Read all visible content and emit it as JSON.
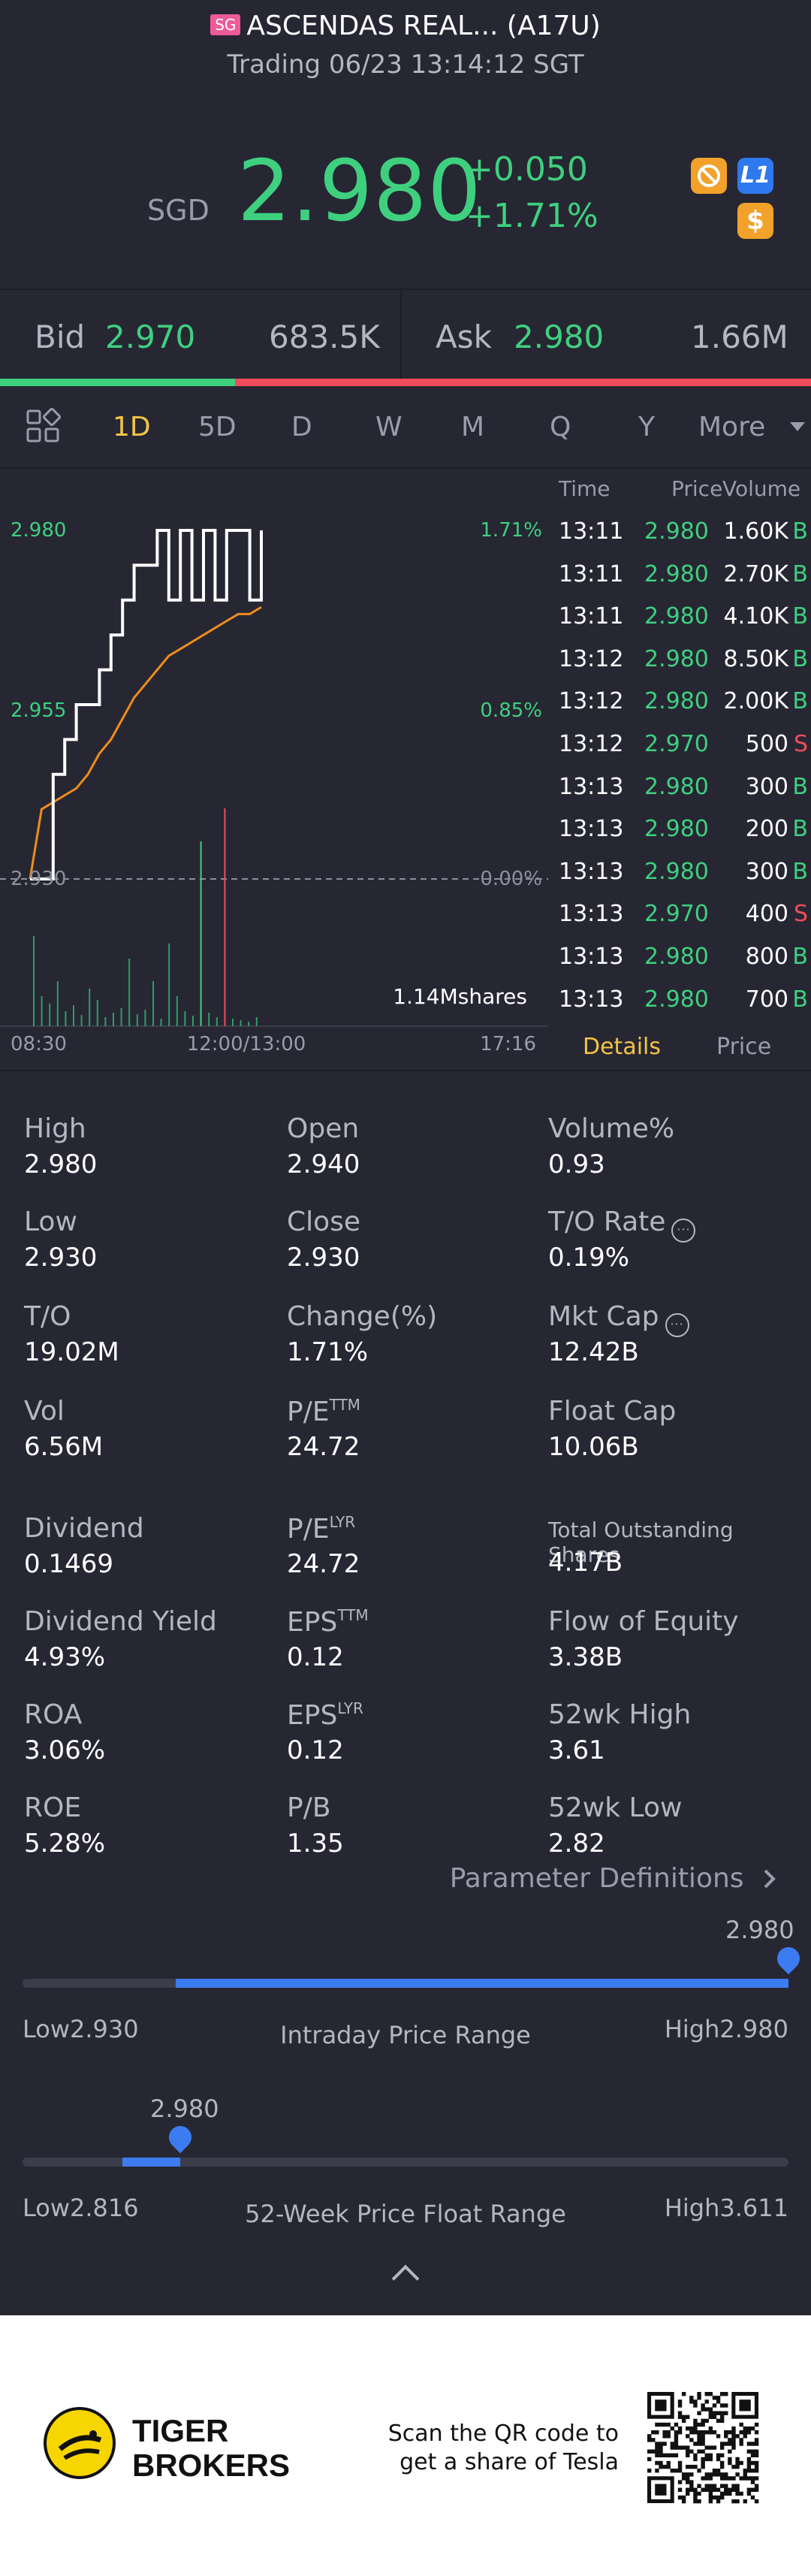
{
  "header": {
    "market_tag": "SG",
    "title": "ASCENDAS REAL... (A17U)",
    "subtitle": "Trading 06/23 13:14:12 SGT"
  },
  "quote": {
    "currency": "SGD",
    "price": "2.980",
    "change": "+0.050",
    "change_pct": "+1.71%",
    "icons": [
      "no-entry-icon",
      "level1-badge-icon",
      "dollar-icon"
    ],
    "l1_label": "L1",
    "dollar_label": "$"
  },
  "bid_ask": {
    "bid_label": "Bid",
    "bid_price": "2.970",
    "bid_volume": "683.5K",
    "ask_label": "Ask",
    "ask_price": "2.980",
    "ask_volume": "1.66M",
    "bid_ratio": 0.29
  },
  "timeframes": {
    "items": [
      "1D",
      "5D",
      "D",
      "W",
      "M",
      "Q",
      "Y"
    ],
    "active": "1D",
    "more_label": "More"
  },
  "chart": {
    "y_top_label": "2.980",
    "y_mid_label": "2.955",
    "y_bottom_label": "2.930",
    "pct_top": "1.71%",
    "pct_mid": "0.85%",
    "pct_bottom": "0.00%",
    "volume_label": "1.14Mshares",
    "x_start": "08:30",
    "x_mid": "12:00/13:00",
    "x_end": "17:16"
  },
  "chart_data": {
    "type": "line",
    "ylim": [
      2.93,
      2.98
    ],
    "xlabel": "",
    "ylabel": "",
    "series": [
      {
        "values": [
          2.93,
          2.93,
          2.945,
          2.95,
          2.955,
          2.955,
          2.96,
          2.965,
          2.97,
          2.975,
          2.975,
          2.98,
          2.97,
          2.98,
          2.97,
          2.98,
          2.97,
          2.98,
          2.98,
          2.97,
          2.98
        ]
      },
      {
        "values": [
          2.93,
          2.94,
          2.941,
          2.942,
          2.943,
          2.945,
          2.948,
          2.95,
          2.953,
          2.956,
          2.958,
          2.96,
          2.962,
          2.963,
          2.964,
          2.965,
          2.966,
          2.967,
          2.968,
          2.968,
          2.969
        ]
      }
    ],
    "x": [
      "08:30",
      "",
      "",
      "",
      "",
      "",
      "",
      "",
      "",
      "",
      "",
      "",
      "",
      "",
      "",
      "",
      "",
      "",
      "",
      "",
      "12:00/13:00"
    ]
  },
  "trades": {
    "headers": [
      "Time",
      "Price",
      "Volume"
    ],
    "rows": [
      {
        "time": "13:11",
        "price": "2.980",
        "vol": "1.60K",
        "side": "B"
      },
      {
        "time": "13:11",
        "price": "2.980",
        "vol": "2.70K",
        "side": "B"
      },
      {
        "time": "13:11",
        "price": "2.980",
        "vol": "4.10K",
        "side": "B"
      },
      {
        "time": "13:12",
        "price": "2.980",
        "vol": "8.50K",
        "side": "B"
      },
      {
        "time": "13:12",
        "price": "2.980",
        "vol": "2.00K",
        "side": "B"
      },
      {
        "time": "13:12",
        "price": "2.970",
        "vol": "500",
        "side": "S"
      },
      {
        "time": "13:13",
        "price": "2.980",
        "vol": "300",
        "side": "B"
      },
      {
        "time": "13:13",
        "price": "2.980",
        "vol": "200",
        "side": "B"
      },
      {
        "time": "13:13",
        "price": "2.980",
        "vol": "300",
        "side": "B"
      },
      {
        "time": "13:13",
        "price": "2.970",
        "vol": "400",
        "side": "S"
      },
      {
        "time": "13:13",
        "price": "2.980",
        "vol": "800",
        "side": "B"
      },
      {
        "time": "13:13",
        "price": "2.980",
        "vol": "700",
        "side": "B"
      }
    ],
    "tab_details": "Details",
    "tab_price": "Price"
  },
  "metrics": {
    "high": {
      "label": "High",
      "value": "2.980"
    },
    "open": {
      "label": "Open",
      "value": "2.940"
    },
    "volume_pct": {
      "label": "Volume%",
      "value": "0.93"
    },
    "low": {
      "label": "Low",
      "value": "2.930"
    },
    "close": {
      "label": "Close",
      "value": "2.930"
    },
    "to_rate": {
      "label": "T/O Rate",
      "value": "0.19%"
    },
    "to": {
      "label": "T/O",
      "value": "19.02M"
    },
    "change_pct": {
      "label": "Change(%)",
      "value": "1.71%"
    },
    "mkt_cap": {
      "label": "Mkt Cap",
      "value": "12.42B"
    },
    "vol": {
      "label": "Vol",
      "value": "6.56M"
    },
    "pe_ttm": {
      "label": "P/E",
      "sup": "TTM",
      "value": "24.72"
    },
    "float_cap": {
      "label": "Float Cap",
      "value": "10.06B"
    },
    "dividend": {
      "label": "Dividend",
      "value": "0.1469"
    },
    "pe_lyr": {
      "label": "P/E",
      "sup": "LYR",
      "value": "24.72"
    },
    "total_shares": {
      "label": "Total Outstanding Shares",
      "value": "4.17B"
    },
    "div_yield": {
      "label": "Dividend Yield",
      "value": "4.93%"
    },
    "eps_ttm": {
      "label": "EPS",
      "sup": "TTM",
      "value": "0.12"
    },
    "flow_equity": {
      "label": "Flow of Equity",
      "value": "3.38B"
    },
    "roa": {
      "label": "ROA",
      "value": "3.06%"
    },
    "eps_lyr": {
      "label": "EPS",
      "sup": "LYR",
      "value": "0.12"
    },
    "wk52_high": {
      "label": "52wk High",
      "value": "3.61"
    },
    "roe": {
      "label": "ROE",
      "value": "5.28%"
    },
    "pb": {
      "label": "P/B",
      "value": "1.35"
    },
    "wk52_low": {
      "label": "52wk Low",
      "value": "2.82"
    },
    "info_glyph": "···"
  },
  "param_link": "Parameter Definitions",
  "intraday_range": {
    "marker_value": "2.980",
    "low_label": "Low2.930",
    "high_label": "High2.980",
    "title": "Intraday Price Range",
    "fill_start": 0.2,
    "position": 1.0
  },
  "week52_range": {
    "marker_value": "2.980",
    "low_label": "Low2.816",
    "high_label": "High3.611",
    "title": "52-Week Price Float Range",
    "position": 0.206
  },
  "footer": {
    "brand_line1": "TIGER",
    "brand_line2": "BROKERS",
    "promo_line1": "Scan the QR code to",
    "promo_line2": "get a share of Tesla"
  },
  "colors": {
    "background": "#262733",
    "up": "#3fd07f",
    "down": "#ef4c5c",
    "accent": "#f5c442",
    "range_blue": "#3d7cf0"
  }
}
